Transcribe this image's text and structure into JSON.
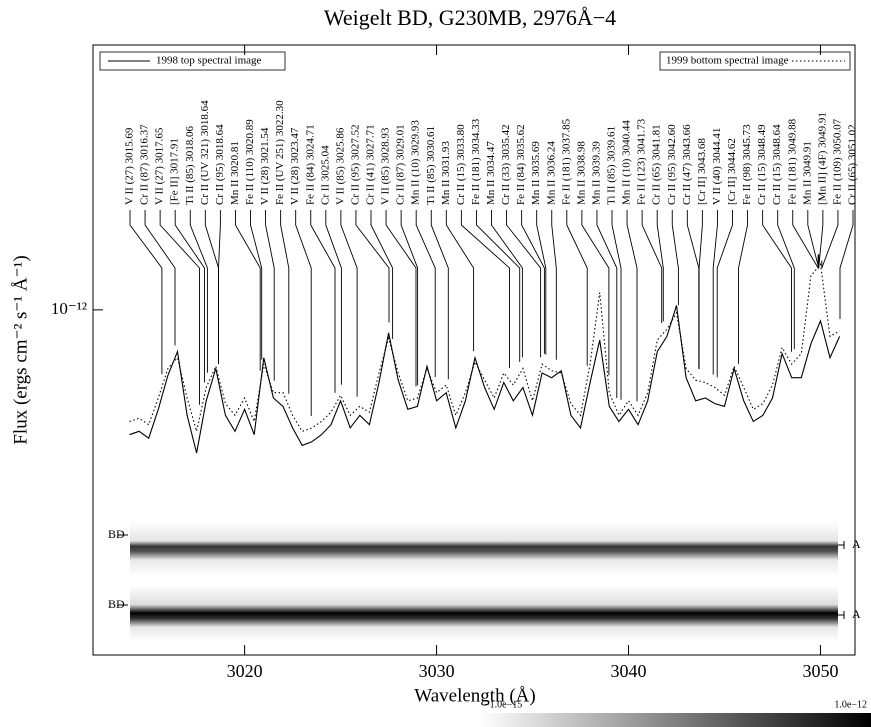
{
  "chart_data": {
    "type": "line",
    "title": "Weigelt BD, G230MB, 2976Å−4",
    "x_label": "Wavelength (Å)",
    "y_label": "Flux (ergs cm⁻² s⁻¹ Å⁻¹)",
    "xlim": [
      3012.1,
      3051.8
    ],
    "xticks": [
      3020,
      3030,
      3040,
      3050
    ],
    "ylim": [
      1.033e-13,
      5.71e-12
    ],
    "log_y": true,
    "yticks": [
      {
        "value": 1e-12,
        "label": "10⁻¹²"
      }
    ],
    "x": [
      3014,
      3014.5,
      3015,
      3015.5,
      3016,
      3016.5,
      3017,
      3017.5,
      3018,
      3018.5,
      3019,
      3019.5,
      3020,
      3020.5,
      3021,
      3021.5,
      3022,
      3022.5,
      3023,
      3023.5,
      3024,
      3024.5,
      3025,
      3025.5,
      3026,
      3026.5,
      3027,
      3027.5,
      3028,
      3028.5,
      3029,
      3029.5,
      3030,
      3030.5,
      3031,
      3031.5,
      3032,
      3032.5,
      3033,
      3033.5,
      3034,
      3034.5,
      3035,
      3035.5,
      3036,
      3036.5,
      3037,
      3037.5,
      3038,
      3038.5,
      3039,
      3039.5,
      3040,
      3040.5,
      3041,
      3041.5,
      3042,
      3042.5,
      3043,
      3043.5,
      3044,
      3044.5,
      3045,
      3045.5,
      3046,
      3046.5,
      3047,
      3047.5,
      3048,
      3048.5,
      3049,
      3049.5,
      3050,
      3050.5,
      3051
    ],
    "series": [
      {
        "name": "1998 top spectral image",
        "color": "#000000",
        "dash": "solid",
        "values": [
          4.4e-13,
          4.5e-13,
          4.3e-13,
          5.2e-13,
          6.5e-13,
          7.6e-13,
          5e-13,
          3.9e-13,
          5.5e-13,
          6.8e-13,
          5e-13,
          4.5e-13,
          5.2e-13,
          4.4e-13,
          7.3e-13,
          5.6e-13,
          5.3e-13,
          4.6e-13,
          4.1e-13,
          4.2e-13,
          4.4e-13,
          4.7e-13,
          5.5e-13,
          4.6e-13,
          5e-13,
          4.7e-13,
          6.2e-13,
          8.6e-13,
          6.3e-13,
          5.2e-13,
          5.3e-13,
          6.9e-13,
          5.5e-13,
          5.8e-13,
          4.6e-13,
          5.5e-13,
          7.3e-13,
          6e-13,
          5.2e-13,
          6.2e-13,
          5.5e-13,
          6e-13,
          5e-13,
          6.6e-13,
          6.4e-13,
          6.7e-13,
          5e-13,
          4.6e-13,
          6.2e-13,
          8.2e-13,
          5.3e-13,
          4.8e-13,
          5.2e-13,
          4.7e-13,
          5.5e-13,
          7.6e-13,
          8.4e-13,
          1.03e-12,
          6.4e-13,
          5.5e-13,
          5.6e-13,
          5.4e-13,
          5.3e-13,
          6.8e-13,
          5.5e-13,
          4.8e-13,
          5e-13,
          5.6e-13,
          7.5e-13,
          6.4e-13,
          6.4e-13,
          8e-13,
          9.3e-13,
          7.3e-13,
          8.4e-13
        ]
      },
      {
        "name": "1999 bottom spectral image",
        "color": "#000000",
        "dash": "dotted",
        "values": [
          4.8e-13,
          4.9e-13,
          4.7e-13,
          5.6e-13,
          6.8e-13,
          7.3e-13,
          5.6e-13,
          4.5e-13,
          6e-13,
          6.9e-13,
          5.4e-13,
          5e-13,
          5.6e-13,
          4.8e-13,
          7e-13,
          5.8e-13,
          5.8e-13,
          5e-13,
          4.5e-13,
          4.6e-13,
          4.8e-13,
          5.1e-13,
          5.7e-13,
          5e-13,
          5.3e-13,
          5.1e-13,
          6.6e-13,
          8.3e-13,
          6.6e-13,
          5.5e-13,
          5.6e-13,
          6.8e-13,
          5.8e-13,
          6.1e-13,
          5e-13,
          5.8e-13,
          7.1e-13,
          6.3e-13,
          5.6e-13,
          6.6e-13,
          6.1e-13,
          6.8e-13,
          5.5e-13,
          7e-13,
          6.7e-13,
          6.6e-13,
          5.4e-13,
          5e-13,
          7e-13,
          1.12e-12,
          5.8e-13,
          5e-13,
          5.5e-13,
          5e-13,
          5.8e-13,
          8.2e-13,
          8.8e-13,
          9.8e-13,
          6.8e-13,
          6.3e-13,
          6.2e-13,
          6e-13,
          5.7e-13,
          6.9e-13,
          6e-13,
          5.2e-13,
          5.4e-13,
          6.1e-13,
          7.8e-13,
          7e-13,
          7.5e-13,
          1.25e-12,
          1.35e-12,
          8.4e-13,
          8.7e-13
        ]
      }
    ],
    "line_ids": [
      {
        "label": "V II (27) 3015.69",
        "wavelength": 3015.69
      },
      {
        "label": "Cr II (87) 3016.37",
        "wavelength": 3016.37
      },
      {
        "label": "V II (27) 3017.65",
        "wavelength": 3017.65
      },
      {
        "label": "[Fe II] 3017.91",
        "wavelength": 3017.91
      },
      {
        "label": "Ti II (85) 3018.06",
        "wavelength": 3018.06
      },
      {
        "label": "Cr II (UV 321) 3018.64",
        "wavelength": 3018.64
      },
      {
        "label": "Cr II (95) 3018.64",
        "wavelength": 3018.64
      },
      {
        "label": "Mn II 3020.81",
        "wavelength": 3020.81
      },
      {
        "label": "Fe II (110) 3020.89",
        "wavelength": 3020.89
      },
      {
        "label": "V II (28) 3021.54",
        "wavelength": 3021.54
      },
      {
        "label": "Fe II (UV 251) 3022.30",
        "wavelength": 3022.3
      },
      {
        "label": "V II (28) 3023.47",
        "wavelength": 3023.47
      },
      {
        "label": "Fe II (84) 3024.71",
        "wavelength": 3024.71
      },
      {
        "label": "Cr II 3025.04",
        "wavelength": 3025.04
      },
      {
        "label": "V II (85) 3025.86",
        "wavelength": 3025.86
      },
      {
        "label": "Cr II (95) 3027.52",
        "wavelength": 3027.52
      },
      {
        "label": "Cr II (41) 3027.71",
        "wavelength": 3027.71
      },
      {
        "label": "V II (85) 3028.93",
        "wavelength": 3028.93
      },
      {
        "label": "Cr II (87) 3029.01",
        "wavelength": 3029.01
      },
      {
        "label": "Mn II (10) 3029.93",
        "wavelength": 3029.93
      },
      {
        "label": "Ti II (85) 3030.61",
        "wavelength": 3030.61
      },
      {
        "label": "Mn II 3031.93",
        "wavelength": 3031.93
      },
      {
        "label": "Cr II (15) 3033.80",
        "wavelength": 3033.8
      },
      {
        "label": "Fe II (181) 3034.33",
        "wavelength": 3034.33
      },
      {
        "label": "Mn II 3034.47",
        "wavelength": 3034.47
      },
      {
        "label": "Cr II (33) 3035.42",
        "wavelength": 3035.42
      },
      {
        "label": "Fe II (84) 3035.62",
        "wavelength": 3035.62
      },
      {
        "label": "Mn II 3035.69",
        "wavelength": 3035.69
      },
      {
        "label": "Mn II 3036.24",
        "wavelength": 3036.24
      },
      {
        "label": "Fe II (181) 3037.85",
        "wavelength": 3037.85
      },
      {
        "label": "Mn II 3038.98",
        "wavelength": 3038.98
      },
      {
        "label": "Mn II 3039.39",
        "wavelength": 3039.39
      },
      {
        "label": "Ti II (85) 3039.61",
        "wavelength": 3039.61
      },
      {
        "label": "Mn II (10) 3040.44",
        "wavelength": 3040.44
      },
      {
        "label": "Fe II (123) 3041.73",
        "wavelength": 3041.73
      },
      {
        "label": "Cr II (65) 3041.81",
        "wavelength": 3041.81
      },
      {
        "label": "Cr II (95) 3042.60",
        "wavelength": 3042.6
      },
      {
        "label": "Cr II (47) 3043.66",
        "wavelength": 3043.66
      },
      {
        "label": "[Cr II] 3043.68",
        "wavelength": 3043.68
      },
      {
        "label": "V II (40) 3044.41",
        "wavelength": 3044.41
      },
      {
        "label": "[Cr II] 3044.62",
        "wavelength": 3044.62
      },
      {
        "label": "Fe II (98) 3045.73",
        "wavelength": 3045.73
      },
      {
        "label": "Cr II (15) 3048.49",
        "wavelength": 3048.49
      },
      {
        "label": "Cr II (15) 3048.64",
        "wavelength": 3048.64
      },
      {
        "label": "Fe II (181) 3049.88",
        "wavelength": 3049.88
      },
      {
        "label": "Mn II 3049.91",
        "wavelength": 3049.91
      },
      {
        "label": "[Mn II] (4F) 3049.91",
        "wavelength": 3049.91
      },
      {
        "label": "Fe II (109) 3050.07",
        "wavelength": 3050.07
      },
      {
        "label": "Cr II (65) 3051.02",
        "wavelength": 3051.02
      }
    ],
    "image_labels": {
      "left": [
        "BD",
        "BD"
      ],
      "right": [
        "A",
        "A"
      ]
    },
    "colorbar": {
      "ticks": [
        {
          "value": -1e-15,
          "label": "−1.0e−15"
        },
        {
          "value": 1e-12,
          "label": "1.0e−12"
        }
      ]
    }
  }
}
